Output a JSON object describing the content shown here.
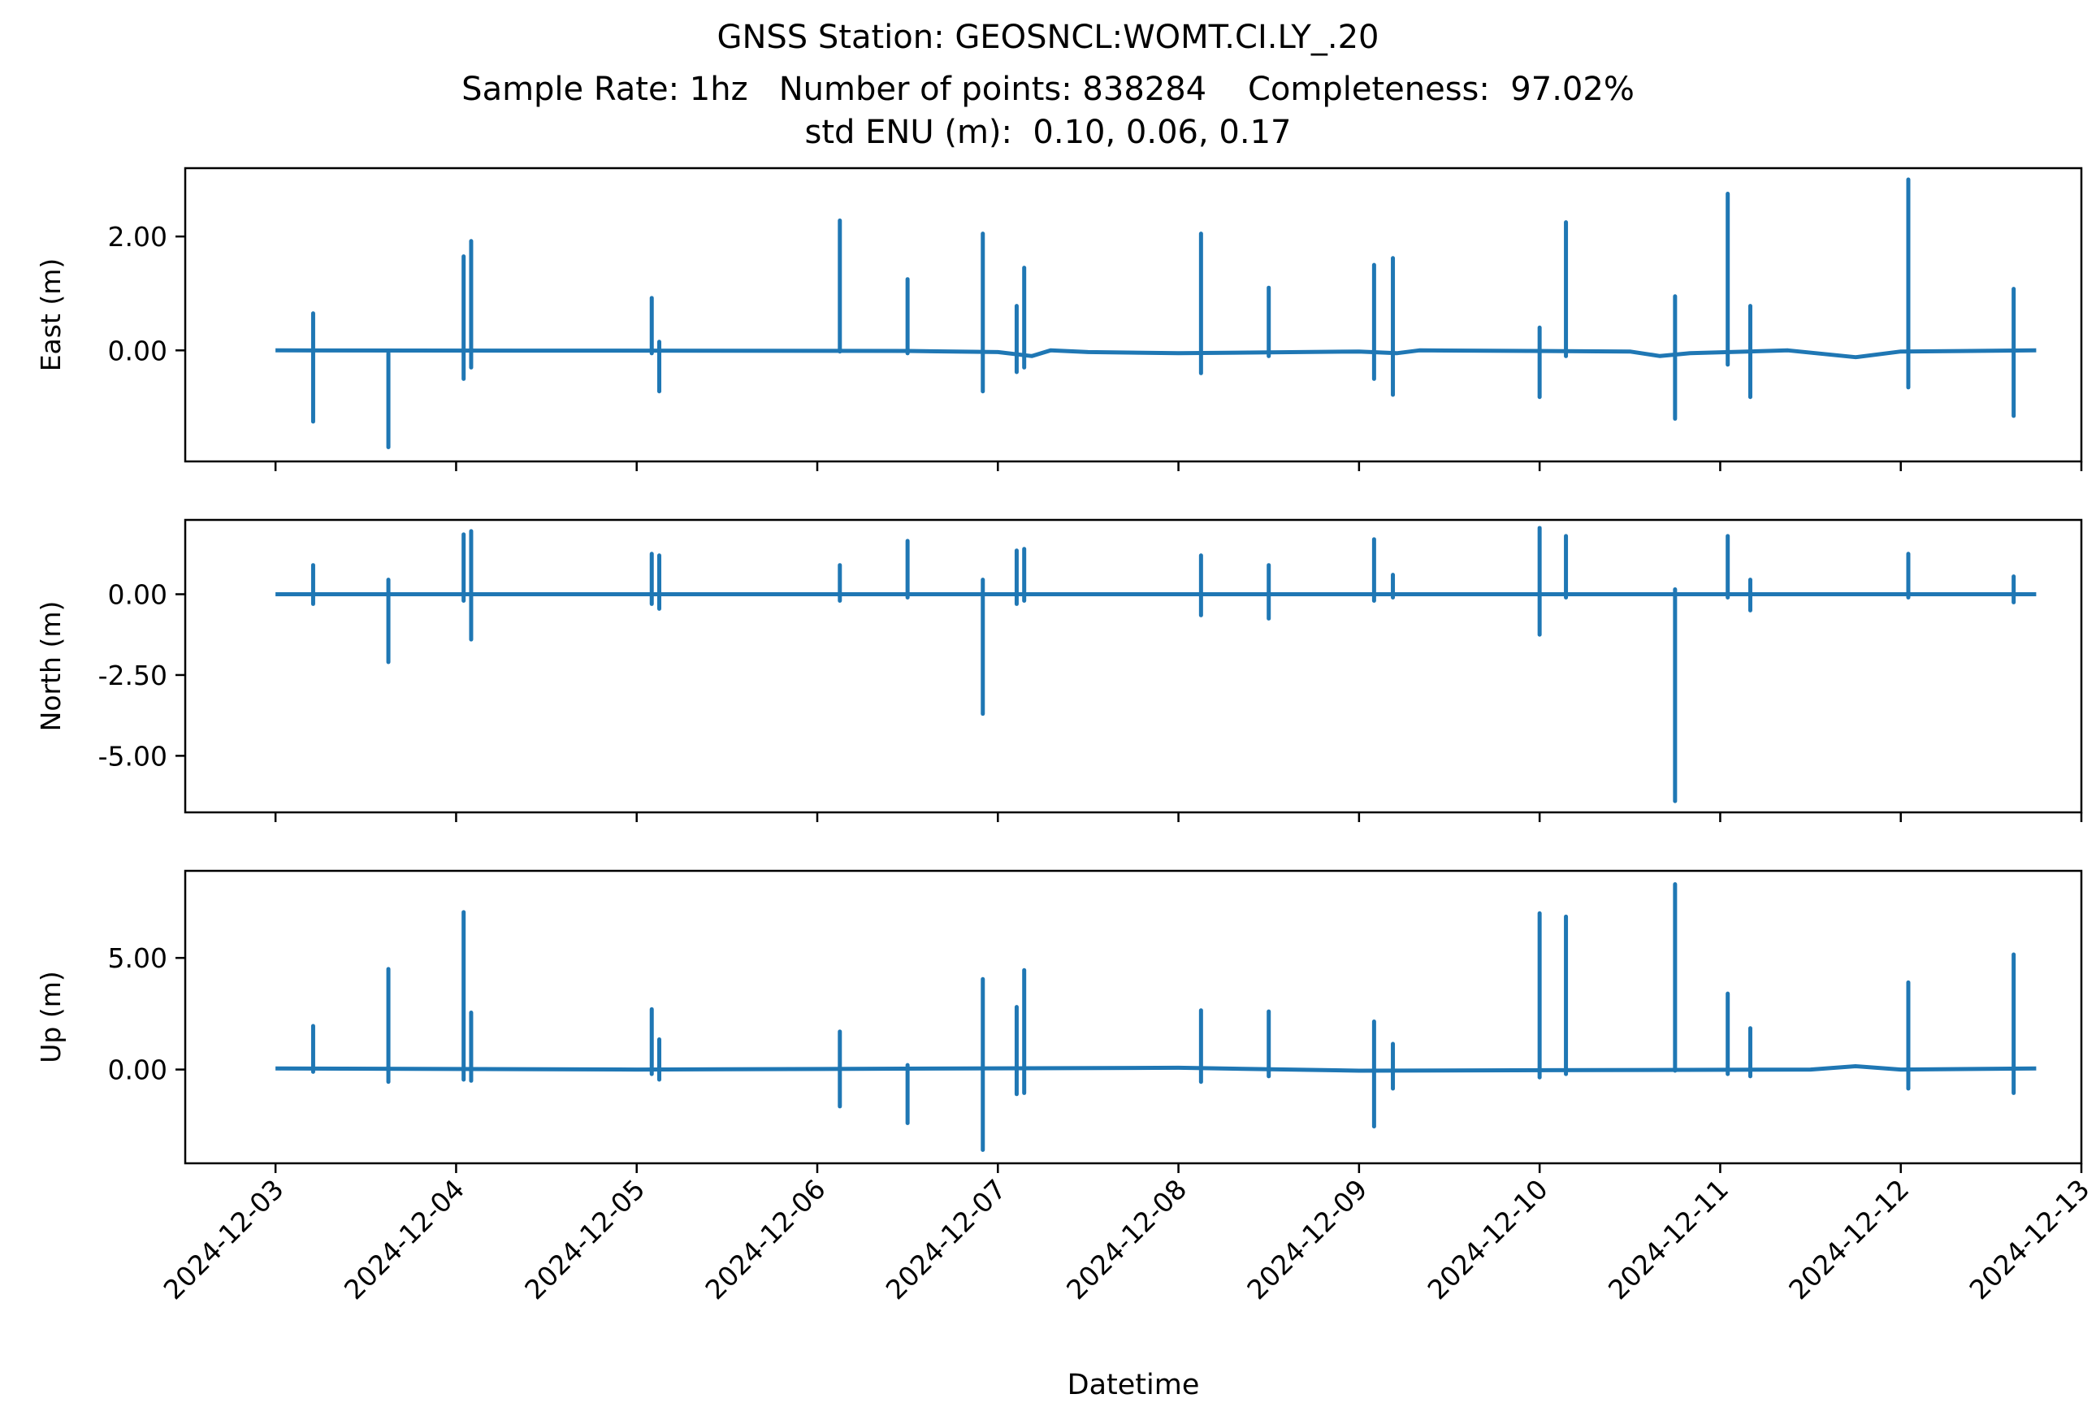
{
  "title_lines": [
    "GNSS Station: GEOSNCL:WOMT.CI.LY_.20",
    "Sample Rate: 1hz   Number of points: 838284    Completeness:  97.02%",
    "std ENU (m):  0.10, 0.06, 0.17"
  ],
  "colors": {
    "series": "#1f77b4",
    "axes": "#000000"
  },
  "chart_data": {
    "type": "line",
    "title": "GNSS Station: GEOSNCL:WOMT.CI.LY_.20 | Sample Rate: 1hz   Number of points: 838284    Completeness:  97.02% | std ENU (m):  0.10, 0.06, 0.17",
    "xlabel": "Datetime",
    "xlim": [
      "2024-12-02 12:00",
      "2024-12-13 00:00"
    ],
    "x_ticks": [
      "2024-12-03",
      "2024-12-04",
      "2024-12-05",
      "2024-12-06",
      "2024-12-07",
      "2024-12-08",
      "2024-12-09",
      "2024-12-10",
      "2024-12-11",
      "2024-12-12",
      "2024-12-13"
    ],
    "data_range": [
      "2024-12-03 00:00",
      "2024-12-12 18:00"
    ],
    "grid": false,
    "panels": [
      {
        "ylabel": "East (m)",
        "ylim": [
          -1.95,
          3.2
        ],
        "y_ticks": [
          0.0,
          2.0
        ],
        "y_tick_labels": [
          "0.00",
          "2.00"
        ],
        "baseline": [
          {
            "x": "2024-12-03 00:00",
            "y": 0.0
          },
          {
            "x": "2024-12-06 12:00",
            "y": -0.01
          },
          {
            "x": "2024-12-07 00:00",
            "y": -0.03
          },
          {
            "x": "2024-12-07 04:30",
            "y": -0.1
          },
          {
            "x": "2024-12-07 07:00",
            "y": 0.0
          },
          {
            "x": "2024-12-07 12:00",
            "y": -0.03
          },
          {
            "x": "2024-12-08 00:00",
            "y": -0.05
          },
          {
            "x": "2024-12-09 00:00",
            "y": -0.02
          },
          {
            "x": "2024-12-09 05:00",
            "y": -0.05
          },
          {
            "x": "2024-12-09 08:00",
            "y": 0.0
          },
          {
            "x": "2024-12-10 12:00",
            "y": -0.02
          },
          {
            "x": "2024-12-10 16:00",
            "y": -0.1
          },
          {
            "x": "2024-12-10 20:00",
            "y": -0.05
          },
          {
            "x": "2024-12-11 09:00",
            "y": 0.0
          },
          {
            "x": "2024-12-11 18:00",
            "y": -0.12
          },
          {
            "x": "2024-12-12 00:00",
            "y": -0.02
          },
          {
            "x": "2024-12-12 18:00",
            "y": 0.0
          }
        ],
        "spikes": [
          {
            "x": "2024-12-03 05:00",
            "max": 0.65,
            "min": -1.25
          },
          {
            "x": "2024-12-03 15:00",
            "max": -0.05,
            "min": -1.7
          },
          {
            "x": "2024-12-04 01:00",
            "max": 1.65,
            "min": -0.5
          },
          {
            "x": "2024-12-04 02:00",
            "max": 1.92,
            "min": -0.3
          },
          {
            "x": "2024-12-05 02:00",
            "max": 0.92,
            "min": -0.05
          },
          {
            "x": "2024-12-05 03:00",
            "max": 0.15,
            "min": -0.72
          },
          {
            "x": "2024-12-06 03:00",
            "max": 2.28,
            "min": -0.02
          },
          {
            "x": "2024-12-06 12:00",
            "max": 1.25,
            "min": -0.05
          },
          {
            "x": "2024-12-06 22:00",
            "max": 2.05,
            "min": -0.72
          },
          {
            "x": "2024-12-07 02:30",
            "max": 0.78,
            "min": -0.38
          },
          {
            "x": "2024-12-07 03:30",
            "max": 1.45,
            "min": -0.3
          },
          {
            "x": "2024-12-08 03:00",
            "max": 2.05,
            "min": -0.4
          },
          {
            "x": "2024-12-08 12:00",
            "max": 1.1,
            "min": -0.1
          },
          {
            "x": "2024-12-09 02:00",
            "max": 1.5,
            "min": -0.5
          },
          {
            "x": "2024-12-09 04:30",
            "max": 1.62,
            "min": -0.78
          },
          {
            "x": "2024-12-10 00:00",
            "max": 0.4,
            "min": -0.82
          },
          {
            "x": "2024-12-10 03:30",
            "max": 2.25,
            "min": -0.1
          },
          {
            "x": "2024-12-10 18:00",
            "max": 0.95,
            "min": -1.2
          },
          {
            "x": "2024-12-11 01:00",
            "max": 2.75,
            "min": -0.25
          },
          {
            "x": "2024-12-11 04:00",
            "max": 0.78,
            "min": -0.82
          },
          {
            "x": "2024-12-12 01:00",
            "max": 3.0,
            "min": -0.65
          },
          {
            "x": "2024-12-12 15:00",
            "max": 1.08,
            "min": -1.15
          }
        ]
      },
      {
        "ylabel": "North (m)",
        "ylim": [
          -6.75,
          2.3
        ],
        "y_ticks": [
          0.0,
          -2.5,
          -5.0
        ],
        "y_tick_labels": [
          "0.00",
          "-2.50",
          "-5.00"
        ],
        "baseline": [
          {
            "x": "2024-12-03 00:00",
            "y": 0.0
          },
          {
            "x": "2024-12-12 18:00",
            "y": 0.0
          }
        ],
        "spikes": [
          {
            "x": "2024-12-03 05:00",
            "max": 0.9,
            "min": -0.3
          },
          {
            "x": "2024-12-03 15:00",
            "max": 0.45,
            "min": -2.1
          },
          {
            "x": "2024-12-04 01:00",
            "max": 1.85,
            "min": -0.2
          },
          {
            "x": "2024-12-04 02:00",
            "max": 1.95,
            "min": -1.4
          },
          {
            "x": "2024-12-05 02:00",
            "max": 1.25,
            "min": -0.3
          },
          {
            "x": "2024-12-05 03:00",
            "max": 1.2,
            "min": -0.45
          },
          {
            "x": "2024-12-06 03:00",
            "max": 0.9,
            "min": -0.2
          },
          {
            "x": "2024-12-06 12:00",
            "max": 1.65,
            "min": -0.1
          },
          {
            "x": "2024-12-06 22:00",
            "max": 0.45,
            "min": -3.7
          },
          {
            "x": "2024-12-07 02:30",
            "max": 1.35,
            "min": -0.3
          },
          {
            "x": "2024-12-07 03:30",
            "max": 1.4,
            "min": -0.2
          },
          {
            "x": "2024-12-08 03:00",
            "max": 1.2,
            "min": -0.65
          },
          {
            "x": "2024-12-08 12:00",
            "max": 0.9,
            "min": -0.75
          },
          {
            "x": "2024-12-09 02:00",
            "max": 1.7,
            "min": -0.2
          },
          {
            "x": "2024-12-09 04:30",
            "max": 0.6,
            "min": -0.1
          },
          {
            "x": "2024-12-10 00:00",
            "max": 2.05,
            "min": -1.25
          },
          {
            "x": "2024-12-10 03:30",
            "max": 1.8,
            "min": -0.1
          },
          {
            "x": "2024-12-10 18:00",
            "max": 0.15,
            "min": -6.4
          },
          {
            "x": "2024-12-11 01:00",
            "max": 1.8,
            "min": -0.1
          },
          {
            "x": "2024-12-11 04:00",
            "max": 0.45,
            "min": -0.5
          },
          {
            "x": "2024-12-12 01:00",
            "max": 1.25,
            "min": -0.1
          },
          {
            "x": "2024-12-12 15:00",
            "max": 0.55,
            "min": -0.25
          }
        ]
      },
      {
        "ylabel": "Up (m)",
        "ylim": [
          -4.2,
          8.9
        ],
        "y_ticks": [
          0.0,
          5.0
        ],
        "y_tick_labels": [
          "0.00",
          "5.00"
        ],
        "baseline": [
          {
            "x": "2024-12-03 00:00",
            "y": 0.05
          },
          {
            "x": "2024-12-05 00:00",
            "y": 0.0
          },
          {
            "x": "2024-12-08 00:00",
            "y": 0.08
          },
          {
            "x": "2024-12-09 00:00",
            "y": -0.05
          },
          {
            "x": "2024-12-11 12:00",
            "y": 0.0
          },
          {
            "x": "2024-12-11 18:00",
            "y": 0.15
          },
          {
            "x": "2024-12-12 00:00",
            "y": 0.0
          },
          {
            "x": "2024-12-12 18:00",
            "y": 0.05
          }
        ],
        "spikes": [
          {
            "x": "2024-12-03 05:00",
            "max": 1.95,
            "min": -0.1
          },
          {
            "x": "2024-12-03 15:00",
            "max": 4.5,
            "min": -0.55
          },
          {
            "x": "2024-12-04 01:00",
            "max": 7.05,
            "min": -0.45
          },
          {
            "x": "2024-12-04 02:00",
            "max": 2.55,
            "min": -0.5
          },
          {
            "x": "2024-12-05 02:00",
            "max": 2.7,
            "min": -0.2
          },
          {
            "x": "2024-12-05 03:00",
            "max": 1.35,
            "min": -0.45
          },
          {
            "x": "2024-12-06 03:00",
            "max": 1.7,
            "min": -1.65
          },
          {
            "x": "2024-12-06 12:00",
            "max": 0.2,
            "min": -2.4
          },
          {
            "x": "2024-12-06 22:00",
            "max": 4.05,
            "min": -3.6
          },
          {
            "x": "2024-12-07 02:30",
            "max": 2.8,
            "min": -1.1
          },
          {
            "x": "2024-12-07 03:30",
            "max": 4.45,
            "min": -1.05
          },
          {
            "x": "2024-12-08 03:00",
            "max": 2.65,
            "min": -0.55
          },
          {
            "x": "2024-12-08 12:00",
            "max": 2.6,
            "min": -0.3
          },
          {
            "x": "2024-12-09 02:00",
            "max": 2.15,
            "min": -2.55
          },
          {
            "x": "2024-12-09 04:30",
            "max": 1.15,
            "min": -0.85
          },
          {
            "x": "2024-12-10 00:00",
            "max": 7.0,
            "min": -0.35
          },
          {
            "x": "2024-12-10 03:30",
            "max": 6.85,
            "min": -0.2
          },
          {
            "x": "2024-12-10 18:00",
            "max": 8.3,
            "min": -0.05
          },
          {
            "x": "2024-12-11 01:00",
            "max": 3.4,
            "min": -0.2
          },
          {
            "x": "2024-12-11 04:00",
            "max": 1.85,
            "min": -0.3
          },
          {
            "x": "2024-12-12 01:00",
            "max": 3.9,
            "min": -0.85
          },
          {
            "x": "2024-12-12 15:00",
            "max": 5.15,
            "min": -1.05
          }
        ]
      }
    ]
  }
}
